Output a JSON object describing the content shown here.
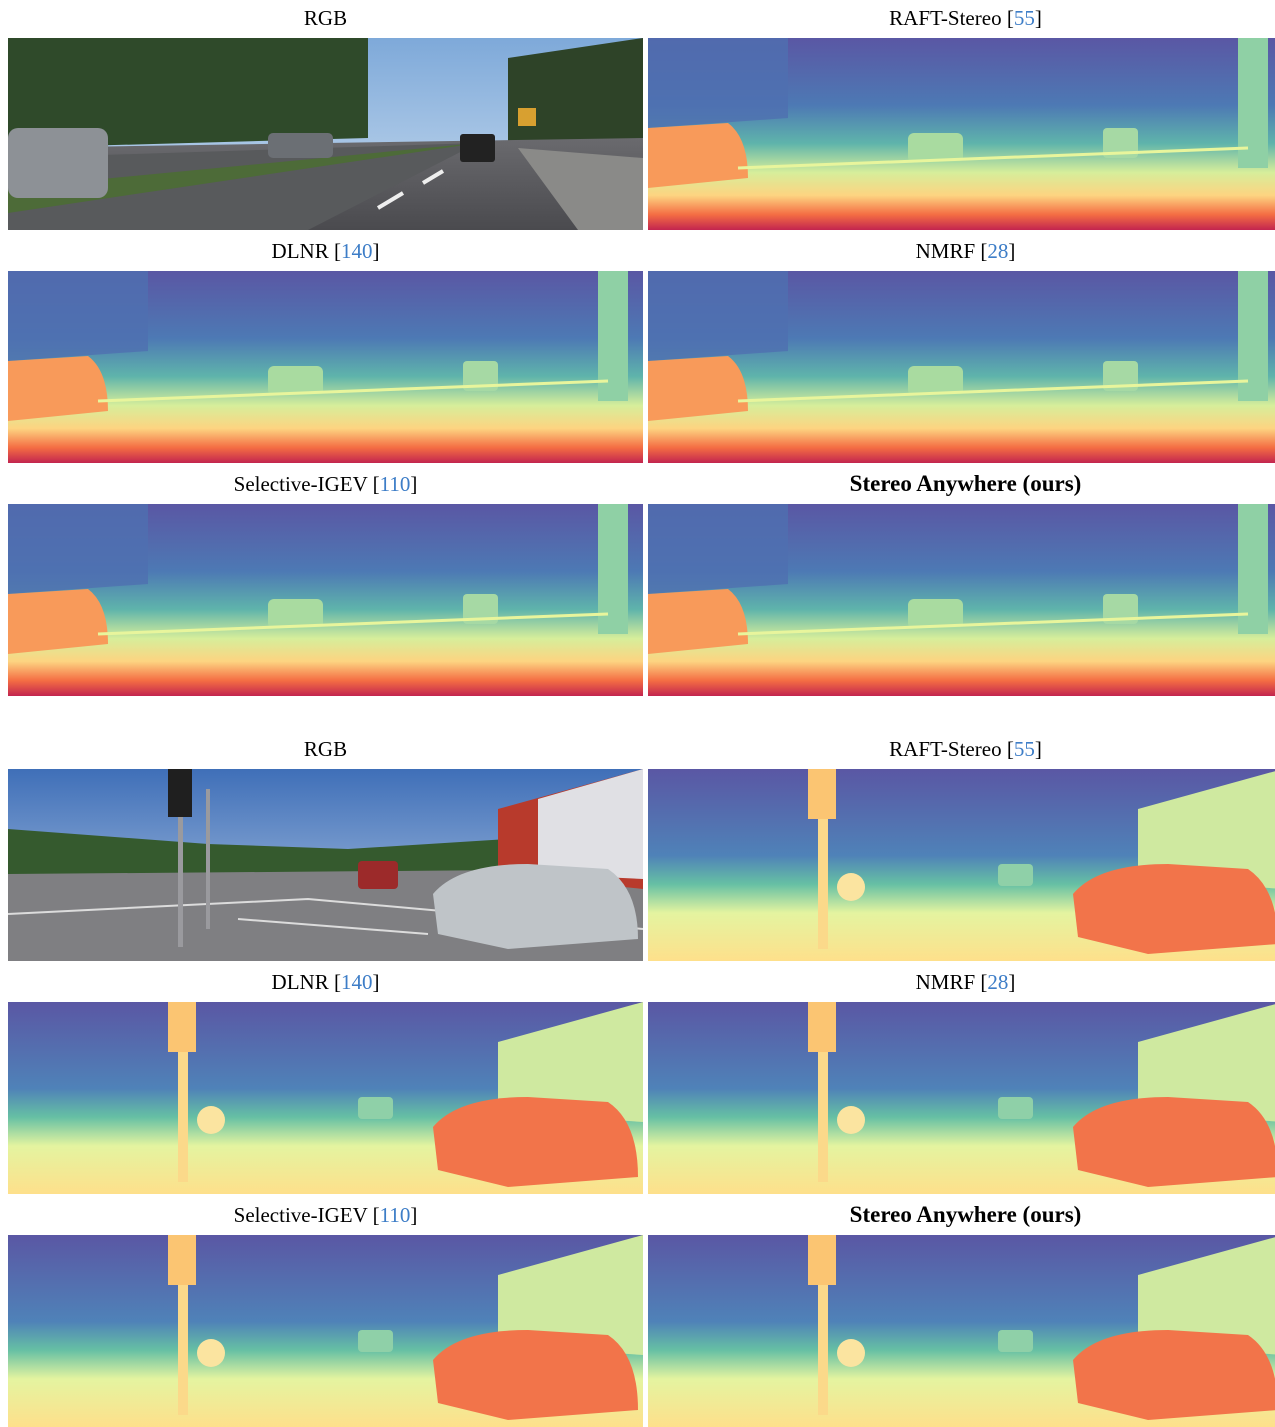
{
  "groups": [
    {
      "panels": [
        {
          "title": "RGB",
          "cite": "",
          "bold": false,
          "kind": "rgb1"
        },
        {
          "title": "RAFT-Stereo [",
          "cite": "55",
          "close": "]",
          "bold": false,
          "kind": "d1"
        },
        {
          "title": "DLNR [",
          "cite": "140",
          "close": "]",
          "bold": false,
          "kind": "d1"
        },
        {
          "title": "NMRF [",
          "cite": "28",
          "close": "]",
          "bold": false,
          "kind": "d1"
        },
        {
          "title": "Selective-IGEV [",
          "cite": "110",
          "close": "]",
          "bold": false,
          "kind": "d1"
        },
        {
          "title": "Stereo Anywhere (ours)",
          "cite": "",
          "close": "",
          "bold": true,
          "kind": "d1"
        }
      ]
    },
    {
      "panels": [
        {
          "title": "RGB",
          "cite": "",
          "bold": false,
          "kind": "rgb2"
        },
        {
          "title": "RAFT-Stereo [",
          "cite": "55",
          "close": "]",
          "bold": false,
          "kind": "d2"
        },
        {
          "title": "DLNR [",
          "cite": "140",
          "close": "]",
          "bold": false,
          "kind": "d2"
        },
        {
          "title": "NMRF [",
          "cite": "28",
          "close": "]",
          "bold": false,
          "kind": "d2"
        },
        {
          "title": "Selective-IGEV [",
          "cite": "110",
          "close": "]",
          "bold": false,
          "kind": "d2"
        },
        {
          "title": "Stereo Anywhere (ours)",
          "cite": "",
          "close": "",
          "bold": true,
          "kind": "d2"
        }
      ]
    }
  ]
}
